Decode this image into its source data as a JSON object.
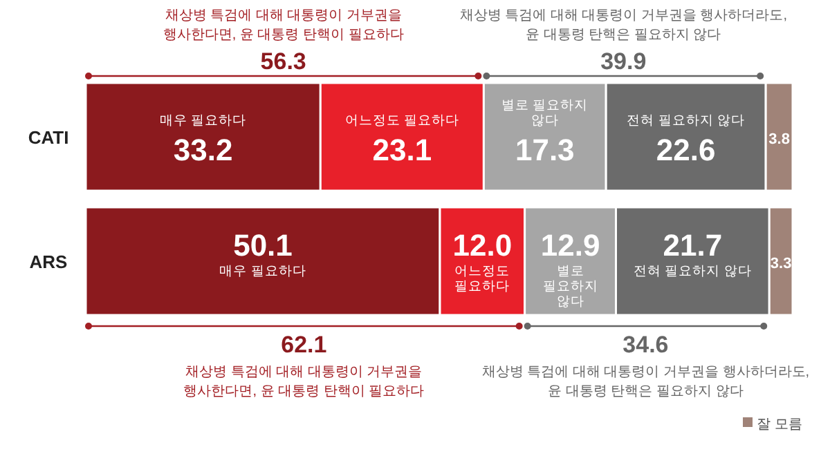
{
  "chart_data": {
    "type": "bar",
    "orientation": "horizontal",
    "stacked": true,
    "legend": "bottom right",
    "xlim": [
      0,
      100
    ],
    "categories": [
      "CATI",
      "ARS"
    ],
    "series": [
      {
        "name": "매우 필요하다",
        "color": "#8b1a1e",
        "values": [
          33.2,
          50.1
        ],
        "value_labels": [
          "33.2",
          "50.1"
        ]
      },
      {
        "name": "어느정도 필요하다",
        "color": "#e8202a",
        "values": [
          23.1,
          12.0
        ],
        "value_labels": [
          "23.1",
          "12.0"
        ]
      },
      {
        "name": "별로 필요하지 않다",
        "color": "#a6a6a6",
        "values": [
          17.3,
          12.9
        ],
        "value_labels": [
          "17.3",
          "12.9"
        ]
      },
      {
        "name": "전혀 필요하지 않다",
        "color": "#6b6b6b",
        "values": [
          22.6,
          21.7
        ],
        "value_labels": [
          "22.6",
          "21.7"
        ]
      },
      {
        "name": "잘 모름",
        "color": "#a08378",
        "values": [
          3.8,
          3.3
        ],
        "value_labels": [
          "3.8",
          "3.3"
        ]
      }
    ],
    "annotations": [
      "채상병 특검에 대해 대통령이 거부권을 행사한다면, 윤 대통령 탄핵이 필요하다",
      "56.3",
      "채상병 특검에 대해 대통령이 거부권을 행사하더라도, 윤 대통령 탄핵은 필요하지 않다",
      "39.9",
      "채상병 특검에 대해 대통령이 거부권을 행사한다면, 윤 대통령 탄핵이 필요하다",
      "62.1",
      "채상병 특검에 대해 대통령이 거부권을 행사하더라도, 윤 대통령 탄핵은 필요하지 않다",
      "34.6"
    ]
  }
}
